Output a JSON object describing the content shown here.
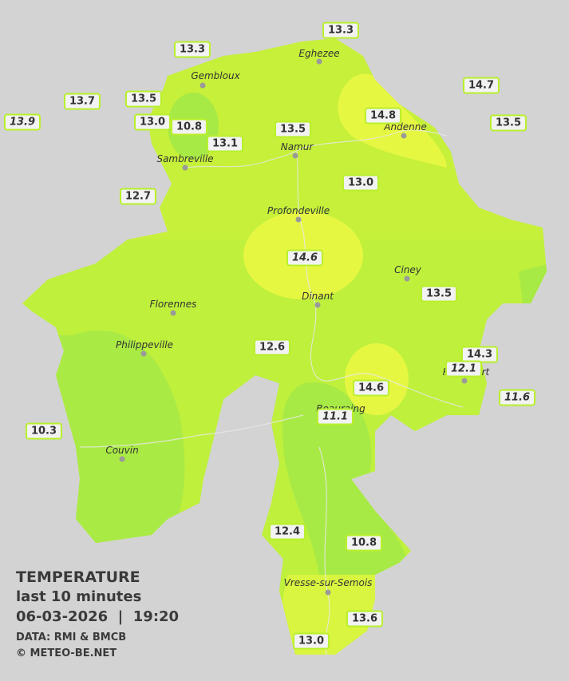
{
  "legend": {
    "title": "TEMPERATURE",
    "subtitle": "last 10 minutes",
    "datetime": "06-03-2026  |  19:20",
    "source": "DATA: RMI & BMCB",
    "copyright": "© METEO-BE.NET"
  },
  "cities": [
    "Eghezee",
    "Gembloux",
    "Andenne",
    "Namur",
    "Sambreville",
    "Profondeville",
    "Ciney",
    "Dinant",
    "Florennes",
    "Philippeville",
    "Rochefort",
    "Beauraing",
    "Couvin",
    "Vresse-sur-Semois"
  ],
  "stations": [
    {
      "value": "13.3"
    },
    {
      "value": "13.3"
    },
    {
      "value": "14.7"
    },
    {
      "value": "13.7"
    },
    {
      "value": "13.5"
    },
    {
      "value": "13.9",
      "italic": true
    },
    {
      "value": "13.0"
    },
    {
      "value": "10.8"
    },
    {
      "value": "14.8"
    },
    {
      "value": "13.5"
    },
    {
      "value": "13.5"
    },
    {
      "value": "13.1"
    },
    {
      "value": "13.0"
    },
    {
      "value": "12.7"
    },
    {
      "value": "14.6",
      "italic": true
    },
    {
      "value": "13.5"
    },
    {
      "value": "12.6"
    },
    {
      "value": "14.3"
    },
    {
      "value": "12.1",
      "italic": true
    },
    {
      "value": "14.6"
    },
    {
      "value": "11.6",
      "italic": true
    },
    {
      "value": "11.1",
      "italic": true
    },
    {
      "value": "10.3"
    },
    {
      "value": "12.4"
    },
    {
      "value": "10.8"
    },
    {
      "value": "13.6"
    },
    {
      "value": "13.0"
    }
  ]
}
